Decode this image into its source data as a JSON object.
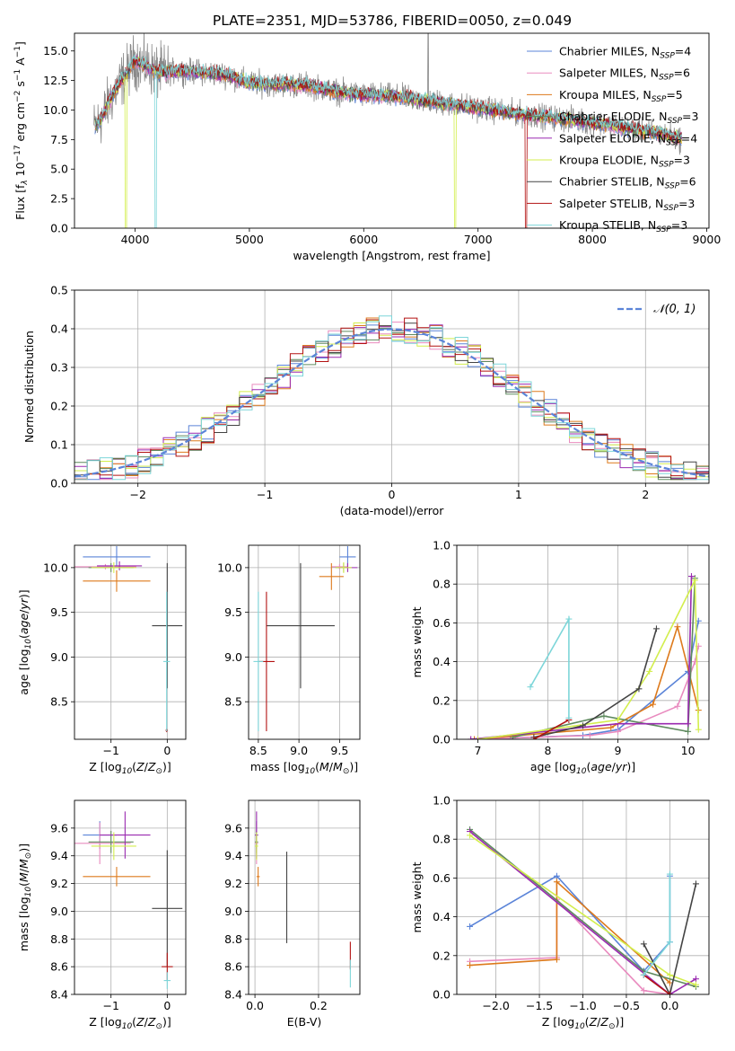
{
  "figure": {
    "title": "PLATE=2351, MJD=53786, FIBERID=0050, z=0.049"
  },
  "colors": {
    "Chabrier MILES": "#5b84d8",
    "Salpeter MILES": "#e98bbf",
    "Kroupa MILES": "#dd7a1c",
    "Chabrier ELODIE": "#5f8a5f",
    "Salpeter ELODIE": "#9a2ab0",
    "Kroupa ELODIE": "#d3ee4d",
    "Chabrier STELIB": "#444444",
    "Salpeter STELIB": "#b31212",
    "Kroupa STELIB": "#7dd6d9",
    "data_spectrum": "#888888",
    "normal_curve": "#5b84d8",
    "grid": "#b0b0b0"
  },
  "chart_data": [
    {
      "id": "spectrum",
      "type": "line",
      "title": "PLATE=2351, MJD=53786, FIBERID=0050, z=0.049",
      "xlabel": "wavelength [Angstrom, rest frame]",
      "ylabel": "Flux [fλ 10⁻¹⁷ erg cm⁻² s⁻¹ A⁻¹]",
      "xlim": [
        3470,
        9020
      ],
      "ylim": [
        0,
        16.5
      ],
      "xticks": [
        4000,
        5000,
        6000,
        7000,
        8000,
        9000
      ],
      "yticks": [
        0.0,
        2.5,
        5.0,
        7.5,
        10.0,
        12.5,
        15.0
      ],
      "grid": false,
      "legend_position": "top-right",
      "legend": [
        {
          "label": "Chabrier MILES",
          "nssp": "4"
        },
        {
          "label": "Salpeter MILES",
          "nssp": "6"
        },
        {
          "label": "Kroupa MILES",
          "nssp": "5"
        },
        {
          "label": "Chabrier ELODIE",
          "nssp": "3"
        },
        {
          "label": "Salpeter ELODIE",
          "nssp": "4"
        },
        {
          "label": "Kroupa ELODIE",
          "nssp": "3"
        },
        {
          "label": "Chabrier STELIB",
          "nssp": "6"
        },
        {
          "label": "Salpeter STELIB",
          "nssp": "3"
        },
        {
          "label": "Kroupa STELIB",
          "nssp": "3"
        }
      ],
      "continuum": {
        "wavelength": [
          3640,
          3700,
          3800,
          3900,
          4000,
          4100,
          4200,
          4400,
          4600,
          4800,
          5000,
          5200,
          5500,
          5800,
          6000,
          6300,
          6600,
          6900,
          7200,
          7500,
          7800,
          8100,
          8400,
          8600,
          8780
        ],
        "flux": [
          8.5,
          9.2,
          11.2,
          12.8,
          14.2,
          13.7,
          13.2,
          13.3,
          13.2,
          13.0,
          12.3,
          12.2,
          12.1,
          11.5,
          11.3,
          11.1,
          10.7,
          10.3,
          9.9,
          9.5,
          9.2,
          8.8,
          8.3,
          8.0,
          7.5
        ]
      }
    },
    {
      "id": "residuals",
      "type": "histogram",
      "xlabel": "(data-model)/error",
      "ylabel": "Normed distribution",
      "xlim": [
        -2.5,
        2.5
      ],
      "ylim": [
        0,
        0.5
      ],
      "xticks": [
        -2,
        -1,
        0,
        1,
        2
      ],
      "yticks": [
        0.0,
        0.1,
        0.2,
        0.3,
        0.4,
        0.5
      ],
      "grid": true,
      "legend_position": "top-right",
      "normal_label": "𝒩(0, 1)",
      "bin_width": 0.1
    },
    {
      "id": "age_vs_Z",
      "type": "errorbar",
      "xlabel": "Z [log10(Z/Z☉)]",
      "ylabel": "age  [log10(age/yr)]",
      "xlim": [
        -1.65,
        0.33
      ],
      "ylim": [
        8.08,
        10.25
      ],
      "xticks": [
        -1,
        0
      ],
      "yticks": [
        8.5,
        9.0,
        9.5,
        10.0
      ],
      "grid": true,
      "points": [
        {
          "model": "Chabrier MILES",
          "x": -0.9,
          "xerr": 0.6,
          "y": 10.12,
          "yerr": 0.12
        },
        {
          "model": "Salpeter MILES",
          "x": -1.1,
          "xerr": 0.55,
          "y": 10.01,
          "yerr": 0.03
        },
        {
          "model": "Kroupa MILES",
          "x": -0.9,
          "xerr": 0.6,
          "y": 9.85,
          "yerr": 0.12
        },
        {
          "model": "Chabrier ELODIE",
          "x": -1.0,
          "xerr": 0.4,
          "y": 10.0,
          "yerr": 0.05
        },
        {
          "model": "Salpeter ELODIE",
          "x": -0.85,
          "xerr": 0.4,
          "y": 10.02,
          "yerr": 0.05
        },
        {
          "model": "Kroupa ELODIE",
          "x": -0.95,
          "xerr": 0.4,
          "y": 10.0,
          "yerr": 0.06
        },
        {
          "model": "Chabrier STELIB",
          "x": 0.0,
          "xerr": 0.27,
          "y": 9.35,
          "yerr": 0.7
        },
        {
          "model": "Salpeter STELIB",
          "x": -0.01,
          "xerr": 0.02,
          "y": 8.18,
          "yerr": 0.02
        },
        {
          "model": "Kroupa STELIB",
          "x": -0.01,
          "xerr": 0.06,
          "y": 8.95,
          "yerr": 0.78
        }
      ]
    },
    {
      "id": "age_vs_mass",
      "type": "errorbar",
      "xlabel": "mass [log10(M/M☉)]",
      "ylabel": "",
      "xlim": [
        8.38,
        9.75
      ],
      "ylim": [
        8.08,
        10.25
      ],
      "xticks": [
        8.5,
        9.0,
        9.5
      ],
      "yticks": [
        8.5,
        9.0,
        9.5,
        10.0
      ],
      "grid": true,
      "points": [
        {
          "model": "Chabrier MILES",
          "x": 9.6,
          "xerr": 0.1,
          "y": 10.12,
          "yerr": 0.12
        },
        {
          "model": "Salpeter MILES",
          "x": 9.5,
          "xerr": 0.1,
          "y": 10.01,
          "yerr": 0.03
        },
        {
          "model": "Kroupa MILES",
          "x": 9.4,
          "xerr": 0.15,
          "y": 9.9,
          "yerr": 0.15
        },
        {
          "model": "Chabrier ELODIE",
          "x": 9.55,
          "xerr": 0.1,
          "y": 10.0,
          "yerr": 0.05
        },
        {
          "model": "Salpeter ELODIE",
          "x": 9.6,
          "xerr": 0.12,
          "y": 10.0,
          "yerr": 0.05
        },
        {
          "model": "Kroupa ELODIE",
          "x": 9.55,
          "xerr": 0.1,
          "y": 10.0,
          "yerr": 0.06
        },
        {
          "model": "Chabrier STELIB",
          "x": 9.02,
          "xerr": 0.42,
          "y": 9.35,
          "yerr": 0.7
        },
        {
          "model": "Salpeter STELIB",
          "x": 8.6,
          "xerr": 0.1,
          "y": 8.95,
          "yerr": 0.78
        },
        {
          "model": "Kroupa STELIB",
          "x": 8.5,
          "xerr": 0.06,
          "y": 8.95,
          "yerr": 0.78
        }
      ]
    },
    {
      "id": "weight_vs_age",
      "type": "line",
      "xlabel": "age  [log10(age/yr)]",
      "ylabel": "mass weight",
      "xlim": [
        6.7,
        10.3
      ],
      "ylim": [
        0,
        1.0
      ],
      "xticks": [
        7,
        8,
        9,
        10
      ],
      "yticks": [
        0.0,
        0.2,
        0.4,
        0.6,
        0.8,
        1.0
      ],
      "grid": true,
      "series": [
        {
          "model": "Chabrier MILES",
          "points": [
            [
              6.95,
              0.0
            ],
            [
              8.5,
              0.02
            ],
            [
              9.0,
              0.05
            ],
            [
              10.0,
              0.35
            ],
            [
              10.15,
              0.61
            ]
          ]
        },
        {
          "model": "Salpeter MILES",
          "points": [
            [
              6.9,
              0.0
            ],
            [
              8.6,
              0.02
            ],
            [
              9.0,
              0.04
            ],
            [
              9.85,
              0.17
            ],
            [
              10.1,
              0.4
            ],
            [
              10.15,
              0.48
            ]
          ]
        },
        {
          "model": "Kroupa MILES",
          "points": [
            [
              6.95,
              0.0
            ],
            [
              8.9,
              0.06
            ],
            [
              9.5,
              0.18
            ],
            [
              9.85,
              0.58
            ],
            [
              10.15,
              0.15
            ]
          ]
        },
        {
          "model": "Chabrier ELODIE",
          "points": [
            [
              7.5,
              0.01
            ],
            [
              8.8,
              0.12
            ],
            [
              10.0,
              0.04
            ],
            [
              10.1,
              0.83
            ]
          ]
        },
        {
          "model": "Salpeter ELODIE",
          "points": [
            [
              6.9,
              0.0
            ],
            [
              9.0,
              0.08
            ],
            [
              10.0,
              0.08
            ],
            [
              10.05,
              0.84
            ]
          ]
        },
        {
          "model": "Kroupa ELODIE",
          "points": [
            [
              7.0,
              0.0
            ],
            [
              9.0,
              0.1
            ],
            [
              9.45,
              0.35
            ],
            [
              10.1,
              0.82
            ],
            [
              10.15,
              0.05
            ]
          ]
        },
        {
          "model": "Chabrier STELIB",
          "points": [
            [
              7.8,
              0.01
            ],
            [
              8.5,
              0.07
            ],
            [
              9.3,
              0.26
            ],
            [
              9.55,
              0.57
            ]
          ]
        },
        {
          "model": "Salpeter STELIB",
          "points": [
            [
              7.8,
              0.0
            ],
            [
              8.3,
              0.1
            ]
          ]
        },
        {
          "model": "Kroupa STELIB",
          "points": [
            [
              7.75,
              0.27
            ],
            [
              8.3,
              0.62
            ],
            [
              8.3,
              0.11
            ]
          ]
        }
      ]
    },
    {
      "id": "mass_vs_Z",
      "type": "errorbar",
      "xlabel": "Z [log10(Z/Z☉)]",
      "ylabel": "mass [log10(M/M☉)]",
      "xlim": [
        -1.65,
        0.33
      ],
      "ylim": [
        8.4,
        9.8
      ],
      "xticks": [
        -1,
        0
      ],
      "yticks": [
        8.4,
        8.6,
        8.8,
        9.0,
        9.2,
        9.4,
        9.6
      ],
      "grid": true,
      "points": [
        {
          "model": "Chabrier MILES",
          "x": -1.2,
          "xerr": 0.3,
          "y": 9.55,
          "yerr": 0.1
        },
        {
          "model": "Salpeter MILES",
          "x": -1.2,
          "xerr": 0.55,
          "y": 9.49,
          "yerr": 0.15
        },
        {
          "model": "Kroupa MILES",
          "x": -0.9,
          "xerr": 0.6,
          "y": 9.25,
          "yerr": 0.07
        },
        {
          "model": "Chabrier ELODIE",
          "x": -1.0,
          "xerr": 0.4,
          "y": 9.5,
          "yerr": 0.08
        },
        {
          "model": "Salpeter ELODIE",
          "x": -0.75,
          "xerr": 0.45,
          "y": 9.55,
          "yerr": 0.17
        },
        {
          "model": "Kroupa ELODIE",
          "x": -0.95,
          "xerr": 0.4,
          "y": 9.47,
          "yerr": 0.1
        },
        {
          "model": "Chabrier STELIB",
          "x": 0.0,
          "xerr": 0.27,
          "y": 9.02,
          "yerr": 0.42
        },
        {
          "model": "Salpeter STELIB",
          "x": 0.0,
          "xerr": 0.1,
          "y": 8.6,
          "yerr": 0.1
        },
        {
          "model": "Kroupa STELIB",
          "x": 0.0,
          "xerr": 0.06,
          "y": 8.5,
          "yerr": 0.06
        }
      ]
    },
    {
      "id": "mass_vs_ebv",
      "type": "errorbar",
      "xlabel": "E(B-V)",
      "ylabel": "",
      "xlim": [
        -0.02,
        0.33
      ],
      "ylim": [
        8.4,
        9.8
      ],
      "xticks": [
        0.0,
        0.2
      ],
      "yticks": [
        8.4,
        8.6,
        8.8,
        9.0,
        9.2,
        9.4,
        9.6
      ],
      "grid": true,
      "points": [
        {
          "model": "Chabrier MILES",
          "x": 0.005,
          "xerr": 0.005,
          "y": 9.55,
          "yerr": 0.1
        },
        {
          "model": "Salpeter MILES",
          "x": 0.005,
          "xerr": 0.005,
          "y": 9.49,
          "yerr": 0.15
        },
        {
          "model": "Kroupa MILES",
          "x": 0.01,
          "xerr": 0.005,
          "y": 9.25,
          "yerr": 0.07
        },
        {
          "model": "Chabrier ELODIE",
          "x": 0.005,
          "xerr": 0.005,
          "y": 9.5,
          "yerr": 0.08
        },
        {
          "model": "Salpeter ELODIE",
          "x": 0.005,
          "xerr": 0.005,
          "y": 9.55,
          "yerr": 0.17
        },
        {
          "model": "Kroupa ELODIE",
          "x": 0.005,
          "xerr": 0.005,
          "y": 9.47,
          "yerr": 0.1
        },
        {
          "model": "Chabrier STELIB",
          "x": 0.1,
          "xerr": 0.0,
          "y": 9.1,
          "yerr": 0.33
        },
        {
          "model": "Salpeter STELIB",
          "x": 0.3,
          "xerr": 0.0,
          "y": 8.68,
          "yerr": 0.1
        },
        {
          "model": "Kroupa STELIB",
          "x": 0.3,
          "xerr": 0.0,
          "y": 8.55,
          "yerr": 0.1
        }
      ]
    },
    {
      "id": "weight_vs_Z",
      "type": "line",
      "xlabel": "Z [log10(Z/Z☉)]",
      "ylabel": "mass weight",
      "xlim": [
        -2.45,
        0.45
      ],
      "ylim": [
        0,
        1.0
      ],
      "xticks": [
        -2.0,
        -1.5,
        -1.0,
        -0.5,
        0.0
      ],
      "yticks": [
        0.0,
        0.2,
        0.4,
        0.6,
        0.8,
        1.0
      ],
      "grid": true,
      "series": [
        {
          "model": "Chabrier MILES",
          "points": [
            [
              -2.3,
              0.35
            ],
            [
              -1.3,
              0.61
            ],
            [
              -0.3,
              0.12
            ],
            [
              0.0,
              0.27
            ],
            [
              0.0,
              0.61
            ]
          ]
        },
        {
          "model": "Salpeter MILES",
          "points": [
            [
              -2.3,
              0.17
            ],
            [
              -1.3,
              0.19
            ],
            [
              -1.3,
              0.49
            ],
            [
              -0.3,
              0.02
            ],
            [
              0.0,
              0.0
            ]
          ]
        },
        {
          "model": "Kroupa MILES",
          "points": [
            [
              -2.3,
              0.15
            ],
            [
              -1.3,
              0.18
            ],
            [
              -1.3,
              0.58
            ],
            [
              0.0,
              0.06
            ]
          ]
        },
        {
          "model": "Chabrier ELODIE",
          "points": [
            [
              -2.3,
              0.85
            ],
            [
              -0.3,
              0.12
            ],
            [
              0.3,
              0.04
            ]
          ]
        },
        {
          "model": "Salpeter ELODIE",
          "points": [
            [
              -2.3,
              0.84
            ],
            [
              0.0,
              0.0
            ],
            [
              0.3,
              0.08
            ]
          ]
        },
        {
          "model": "Kroupa ELODIE",
          "points": [
            [
              -2.3,
              0.82
            ],
            [
              0.0,
              0.1
            ],
            [
              0.3,
              0.05
            ]
          ]
        },
        {
          "model": "Chabrier STELIB",
          "points": [
            [
              -0.3,
              0.26
            ],
            [
              0.0,
              0.0
            ],
            [
              0.3,
              0.57
            ]
          ]
        },
        {
          "model": "Salpeter STELIB",
          "points": [
            [
              -0.3,
              0.1
            ],
            [
              0.0,
              0.0
            ]
          ]
        },
        {
          "model": "Kroupa STELIB",
          "points": [
            [
              -0.3,
              0.1
            ],
            [
              0.0,
              0.27
            ],
            [
              0.0,
              0.62
            ]
          ]
        }
      ]
    }
  ]
}
